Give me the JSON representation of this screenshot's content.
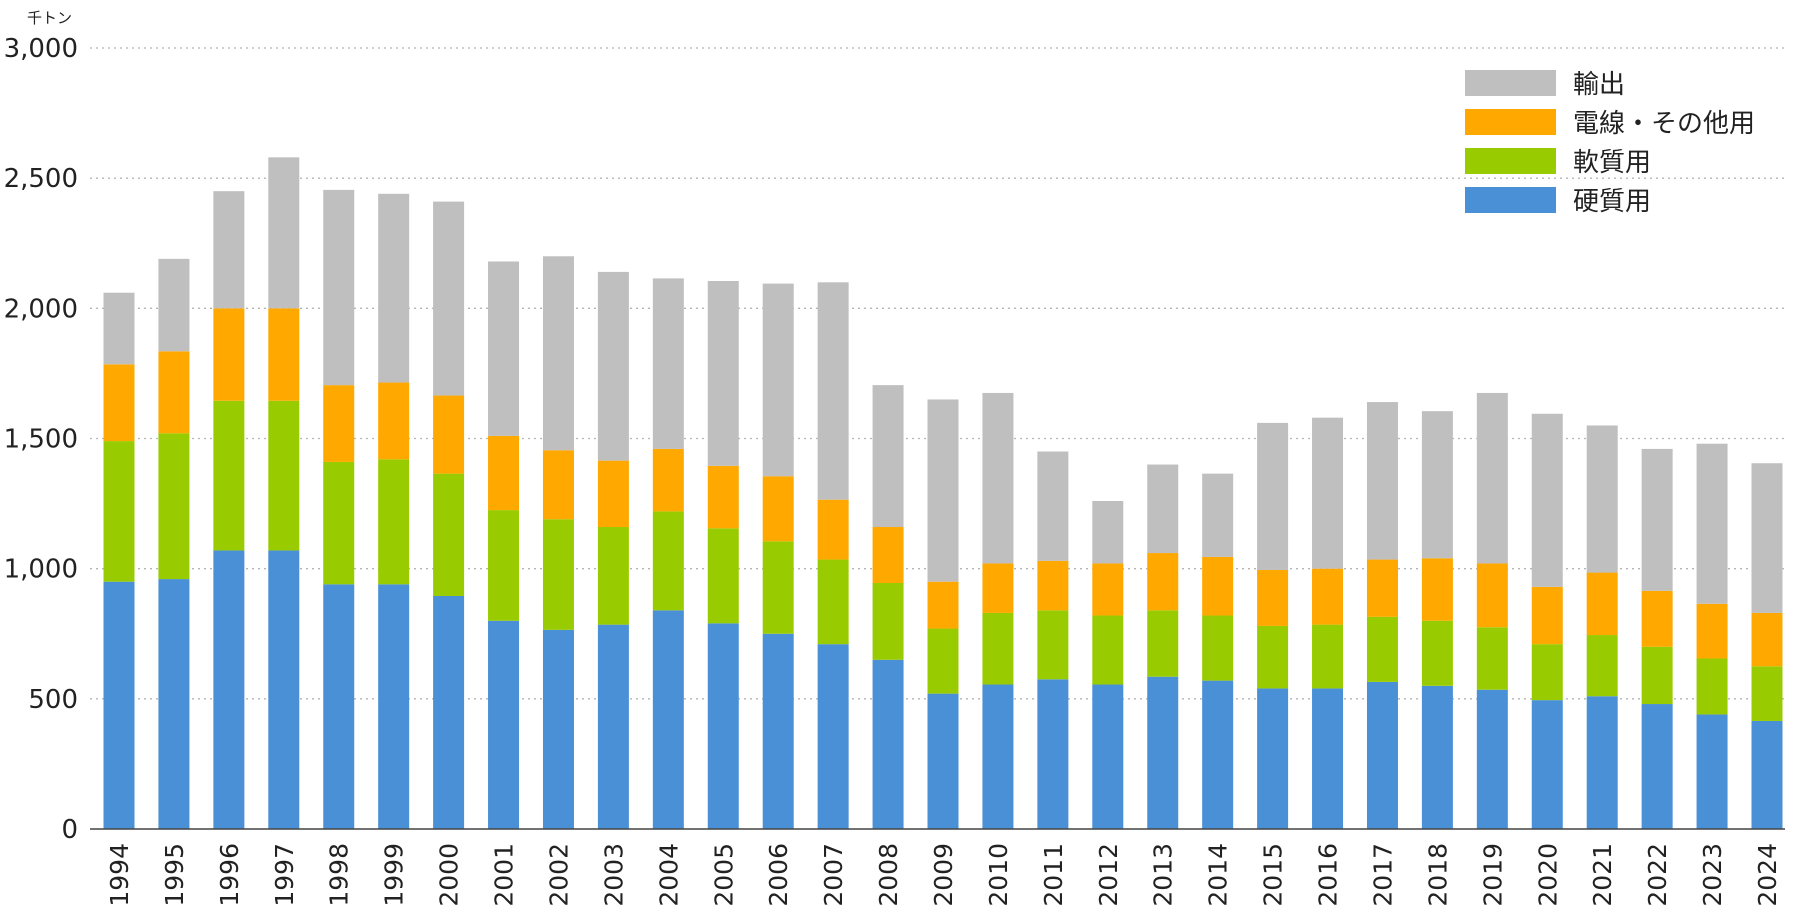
{
  "chart_data": {
    "type": "bar",
    "stacked": true,
    "unit_label": "千トン",
    "ylim": [
      0,
      3000
    ],
    "y_ticks": [
      0,
      500,
      1000,
      1500,
      2000,
      2500,
      3000
    ],
    "y_tick_labels": [
      "0",
      "500",
      "1,000",
      "1,500",
      "2,000",
      "2,500",
      "3,000"
    ],
    "grid": true,
    "legend_position": "top-right",
    "categories": [
      "1994",
      "1995",
      "1996",
      "1997",
      "1998",
      "1999",
      "2000",
      "2001",
      "2002",
      "2003",
      "2004",
      "2005",
      "2006",
      "2007",
      "2008",
      "2009",
      "2010",
      "2011",
      "2012",
      "2013",
      "2014",
      "2015",
      "2016",
      "2017",
      "2018",
      "2019",
      "2020",
      "2021",
      "2022",
      "2023",
      "2024"
    ],
    "series": [
      {
        "name": "硬質用",
        "color": "#4a90d6",
        "values": [
          950,
          960,
          1070,
          1070,
          940,
          940,
          895,
          800,
          765,
          785,
          840,
          790,
          750,
          710,
          650,
          520,
          555,
          575,
          555,
          585,
          570,
          540,
          540,
          565,
          550,
          535,
          495,
          510,
          480,
          440,
          415
        ]
      },
      {
        "name": "軟質用",
        "color": "#99cc00",
        "values": [
          540,
          560,
          575,
          575,
          470,
          480,
          470,
          425,
          425,
          375,
          380,
          365,
          355,
          325,
          295,
          250,
          275,
          265,
          265,
          255,
          250,
          240,
          245,
          250,
          250,
          240,
          215,
          235,
          220,
          215,
          210
        ]
      },
      {
        "name": "電線・その他用",
        "color": "#ffa800",
        "values": [
          295,
          315,
          355,
          355,
          295,
          295,
          300,
          285,
          265,
          255,
          240,
          240,
          250,
          230,
          215,
          180,
          190,
          190,
          200,
          220,
          225,
          215,
          215,
          220,
          240,
          245,
          220,
          240,
          215,
          210,
          205
        ]
      },
      {
        "name": "輸出",
        "color": "#bfbfbf",
        "values": [
          275,
          355,
          450,
          580,
          750,
          725,
          745,
          670,
          745,
          725,
          655,
          710,
          740,
          835,
          545,
          700,
          655,
          420,
          240,
          340,
          320,
          565,
          580,
          605,
          565,
          655,
          665,
          565,
          545,
          615,
          575
        ]
      }
    ],
    "legend_order": [
      "輸出",
      "電線・その他用",
      "軟質用",
      "硬質用"
    ]
  }
}
